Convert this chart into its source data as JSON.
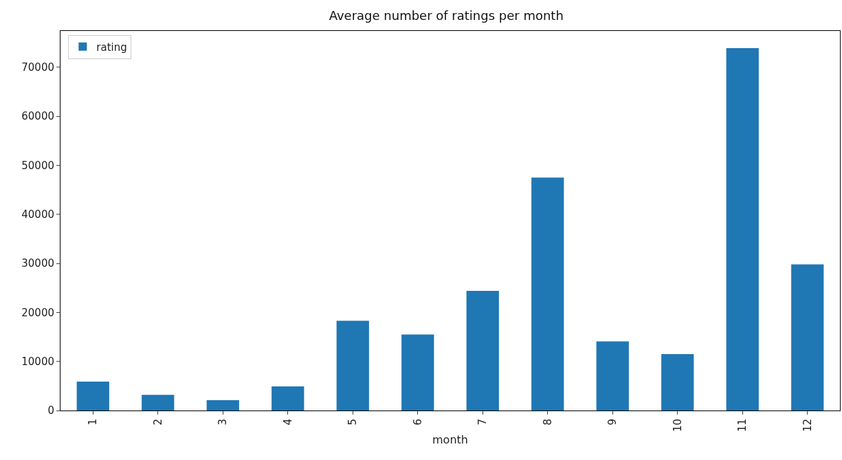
{
  "chart_data": {
    "type": "bar",
    "title": "Average number of ratings per month",
    "xlabel": "month",
    "categories": [
      "1",
      "2",
      "3",
      "4",
      "5",
      "6",
      "7",
      "8",
      "9",
      "10",
      "11",
      "12"
    ],
    "series": [
      {
        "name": "rating",
        "color": "#1f77b4",
        "values": [
          5900,
          3200,
          2100,
          4900,
          18300,
          15500,
          24400,
          47500,
          14100,
          11500,
          73900,
          29800
        ]
      }
    ],
    "ylim": [
      0,
      77400
    ],
    "yticks": [
      0,
      10000,
      20000,
      30000,
      40000,
      50000,
      60000,
      70000
    ],
    "grid": false,
    "legend": "top left"
  }
}
